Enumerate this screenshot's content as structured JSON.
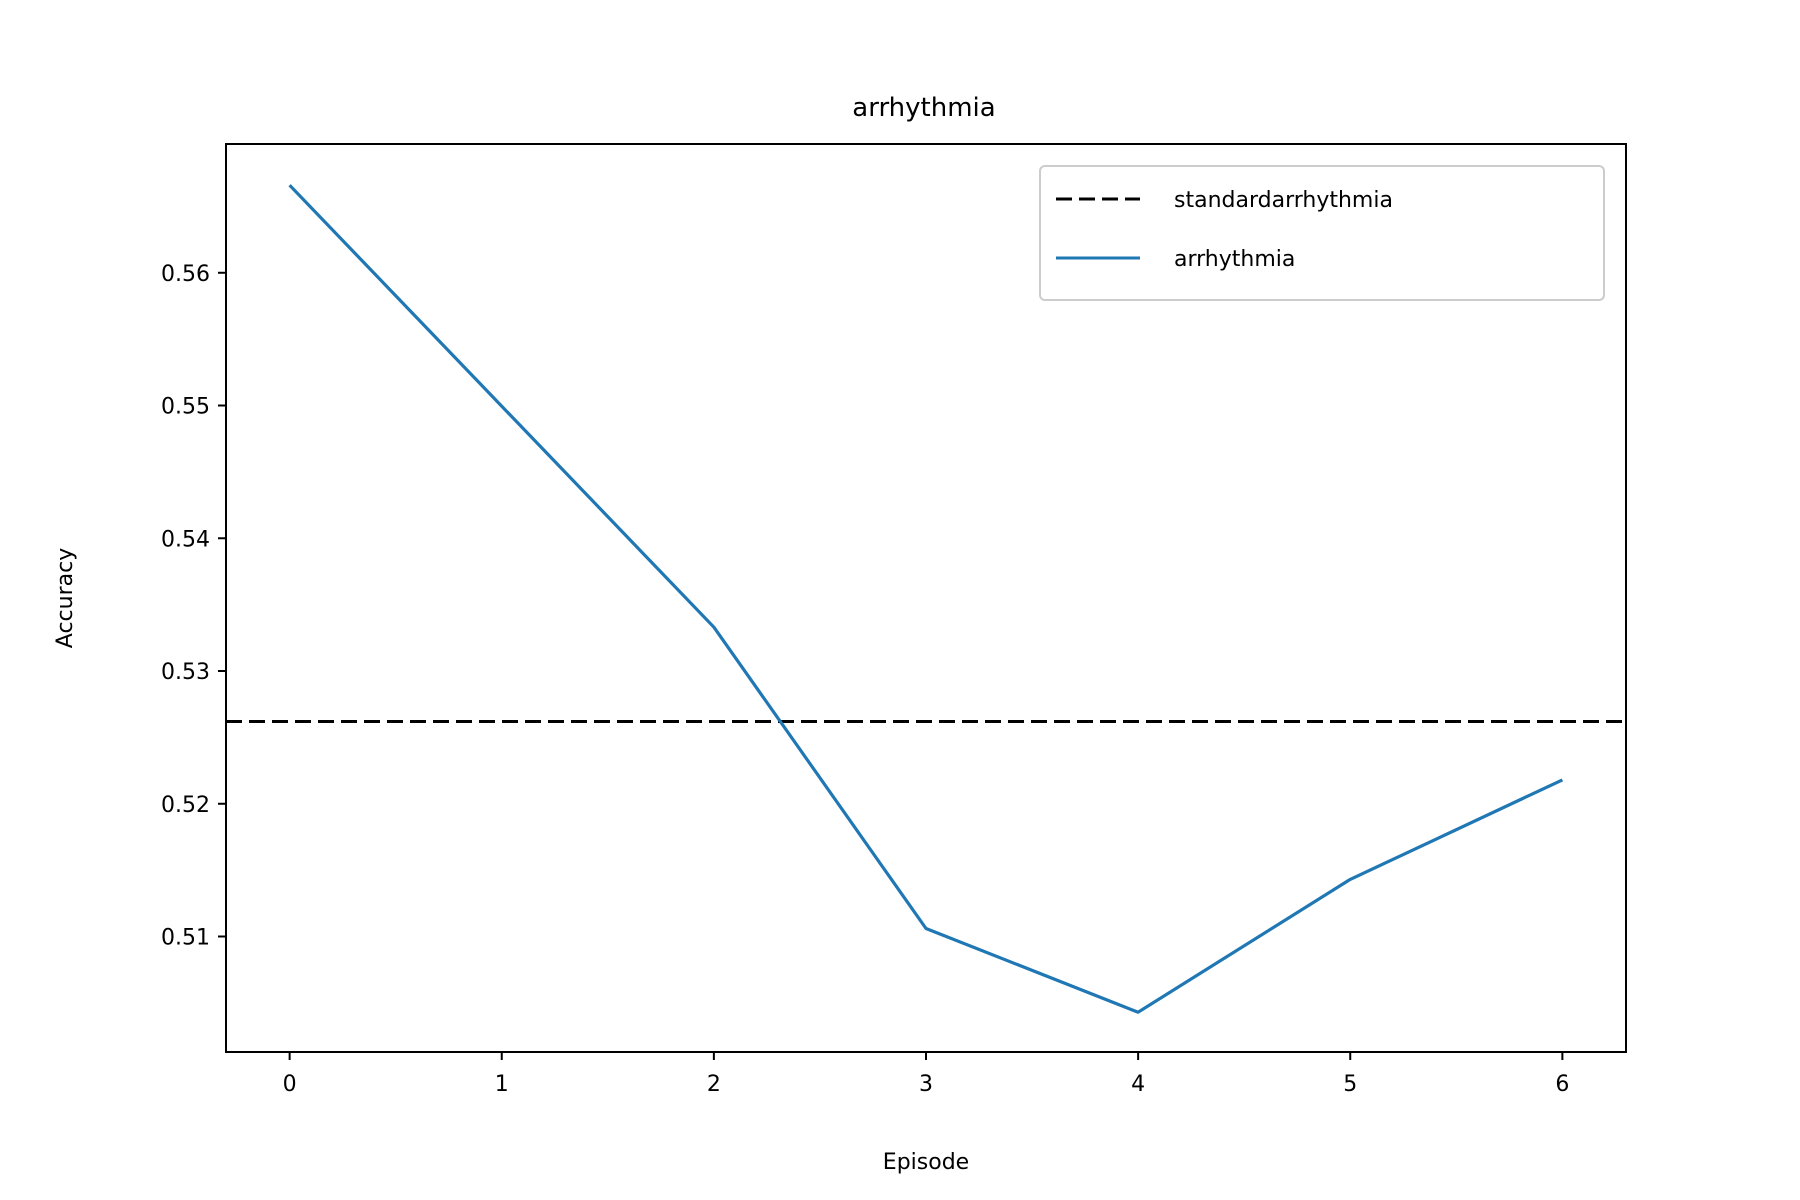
{
  "chart_data": {
    "type": "line",
    "title": "arrhythmia",
    "xlabel": "Episode",
    "ylabel": "Accuracy",
    "xlim": [
      -0.3,
      6.3
    ],
    "ylim": [
      0.5013,
      0.5697
    ],
    "x_ticks": [
      0,
      1,
      2,
      3,
      4,
      5,
      6
    ],
    "y_ticks": [
      0.51,
      0.52,
      0.53,
      0.54,
      0.55,
      0.56
    ],
    "y_tick_labels": [
      "0.51",
      "0.52",
      "0.53",
      "0.54",
      "0.55",
      "0.56"
    ],
    "grid": false,
    "legend_position": "top-right",
    "reference_line": {
      "name": "standardarrhythmia",
      "y": 0.5262,
      "color": "#000000",
      "style": "dashed"
    },
    "series": [
      {
        "name": "arrhythmia",
        "color": "#1f77b4",
        "x": [
          0,
          2,
          3,
          4,
          5,
          6
        ],
        "values": [
          0.5666,
          0.5333,
          0.5106,
          0.5043,
          0.5143,
          0.5218
        ]
      }
    ]
  }
}
